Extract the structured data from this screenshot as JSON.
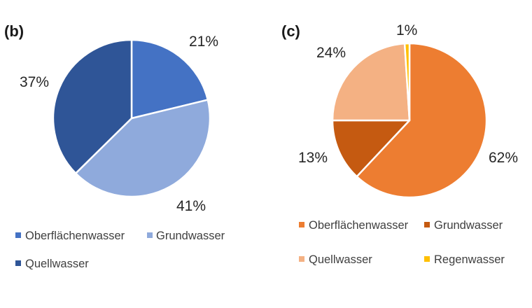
{
  "chart_data": [
    {
      "type": "pie",
      "panel_label": "(b)",
      "categories": [
        "Oberflächenwasser",
        "Grundwasser",
        "Quellwasser"
      ],
      "values": [
        21,
        41,
        37
      ],
      "data_labels": [
        "21%",
        "41%",
        "37%"
      ],
      "colors": [
        "#4472c4",
        "#8faadc",
        "#2f5597"
      ],
      "legend_placement": "bottom"
    },
    {
      "type": "pie",
      "panel_label": "(c)",
      "categories": [
        "Oberflächenwasser",
        "Grundwasser",
        "Quellwasser",
        "Regenwasser"
      ],
      "values": [
        62,
        13,
        24,
        1
      ],
      "data_labels": [
        "62%",
        "13%",
        "24%",
        "1%"
      ],
      "colors": [
        "#ed7d31",
        "#c55a11",
        "#f4b183",
        "#ffc000"
      ],
      "legend_placement": "bottom"
    }
  ]
}
